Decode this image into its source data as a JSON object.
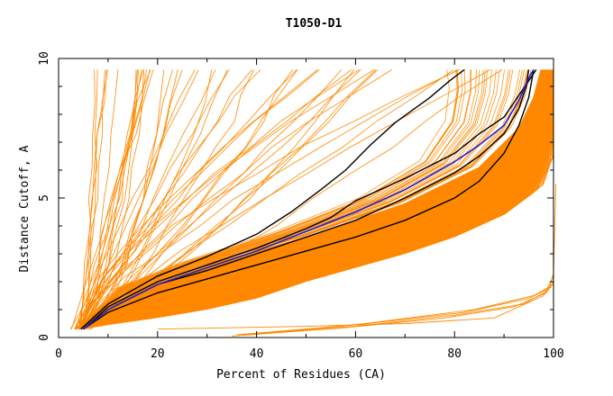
{
  "colors": {
    "background": "#ffffff",
    "axis": "#000000",
    "models": "#ff8800",
    "highlight": "#000000",
    "reference": "#2020cc"
  },
  "chart_data": {
    "type": "line",
    "title": "T1050-D1",
    "xlabel": "Percent of Residues (CA)",
    "ylabel": "Distance Cutoff, A",
    "xlim": [
      0,
      100
    ],
    "ylim": [
      0,
      10
    ],
    "x_ticks": [
      "0",
      "20",
      "40",
      "60",
      "80",
      "100"
    ],
    "y_ticks": [
      "0",
      "5",
      "10"
    ],
    "grid": false,
    "legend": "none",
    "highlighted_curves": [
      {
        "color": "black",
        "points": [
          [
            4.5,
            0.3
          ],
          [
            10,
            1.2
          ],
          [
            20,
            2.2
          ],
          [
            30,
            2.9
          ],
          [
            40,
            3.7
          ],
          [
            47,
            4.5
          ],
          [
            53,
            5.3
          ],
          [
            58,
            6.0
          ],
          [
            63,
            6.9
          ],
          [
            68,
            7.7
          ],
          [
            75,
            8.6
          ],
          [
            79,
            9.2
          ],
          [
            82,
            9.6
          ]
        ]
      },
      {
        "color": "black",
        "points": [
          [
            5,
            0.3
          ],
          [
            10,
            1.1
          ],
          [
            20,
            2.0
          ],
          [
            30,
            2.6
          ],
          [
            40,
            3.2
          ],
          [
            50,
            3.9
          ],
          [
            55,
            4.3
          ],
          [
            60,
            4.9
          ],
          [
            70,
            5.7
          ],
          [
            80,
            6.6
          ],
          [
            85,
            7.3
          ],
          [
            90,
            7.9
          ],
          [
            95,
            9.2
          ],
          [
            96.5,
            9.6
          ]
        ]
      },
      {
        "color": "black",
        "points": [
          [
            5,
            0.3
          ],
          [
            10,
            0.9
          ],
          [
            20,
            1.6
          ],
          [
            30,
            2.1
          ],
          [
            40,
            2.6
          ],
          [
            50,
            3.1
          ],
          [
            60,
            3.6
          ],
          [
            70,
            4.2
          ],
          [
            80,
            5.0
          ],
          [
            85,
            5.6
          ],
          [
            90,
            6.6
          ],
          [
            93,
            7.6
          ],
          [
            95,
            8.6
          ],
          [
            96,
            9.6
          ]
        ]
      },
      {
        "color": "black",
        "points": [
          [
            5,
            0.3
          ],
          [
            10,
            1.0
          ],
          [
            20,
            1.9
          ],
          [
            30,
            2.4
          ],
          [
            40,
            3.0
          ],
          [
            50,
            3.6
          ],
          [
            60,
            4.2
          ],
          [
            70,
            5.0
          ],
          [
            80,
            5.9
          ],
          [
            85,
            6.5
          ],
          [
            90,
            7.3
          ],
          [
            93,
            8.2
          ],
          [
            94.5,
            9.0
          ],
          [
            95,
            9.6
          ]
        ]
      },
      {
        "color": "blue",
        "points": [
          [
            5,
            0.3
          ],
          [
            10,
            1.0
          ],
          [
            20,
            1.9
          ],
          [
            30,
            2.5
          ],
          [
            40,
            3.1
          ],
          [
            50,
            3.8
          ],
          [
            60,
            4.5
          ],
          [
            70,
            5.3
          ],
          [
            80,
            6.3
          ],
          [
            85,
            6.9
          ],
          [
            90,
            7.6
          ],
          [
            93,
            8.5
          ],
          [
            95,
            9.3
          ],
          [
            96,
            9.6
          ]
        ]
      }
    ]
  }
}
